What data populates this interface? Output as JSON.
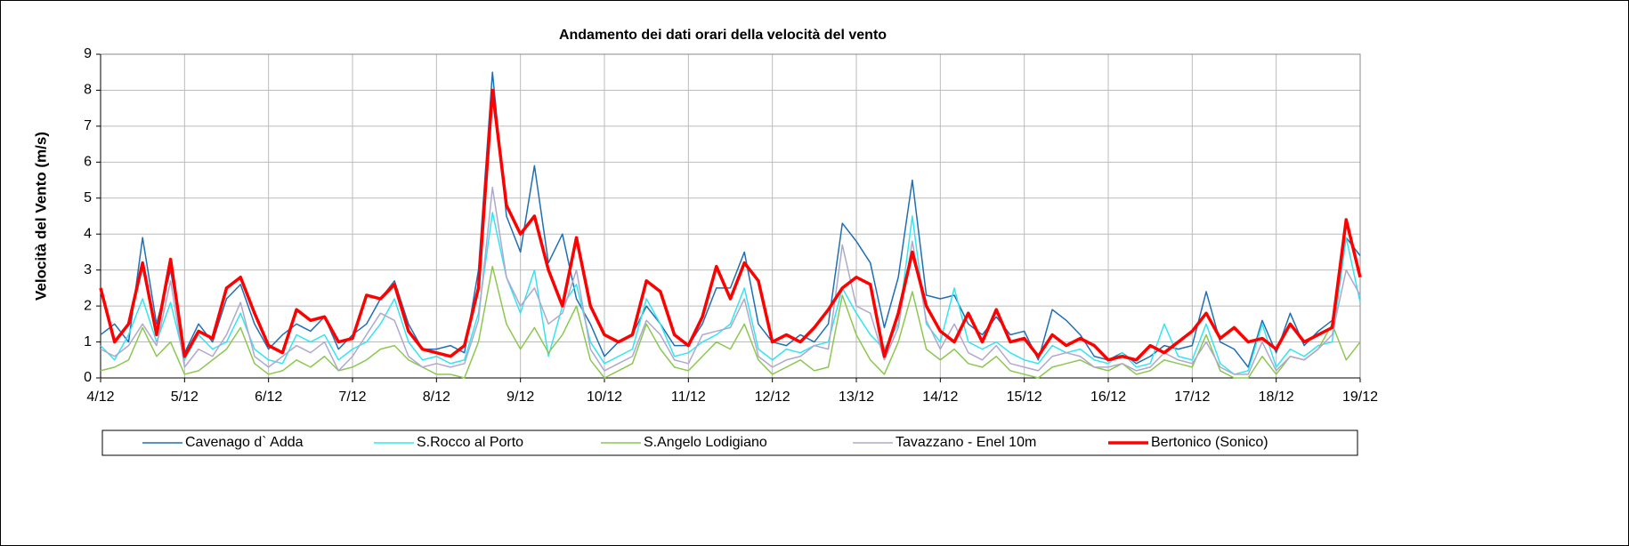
{
  "chart_data": {
    "type": "line",
    "title": "Andamento dei dati orari della velocità del vento",
    "y_label": "Velocità del Vento (m/s)",
    "x": [
      0,
      4,
      8,
      12,
      16,
      20,
      24,
      28,
      32,
      36,
      40,
      44,
      48,
      52,
      56,
      60,
      64,
      68,
      72,
      76,
      80,
      84,
      88,
      92,
      96,
      100,
      104,
      108,
      112,
      116,
      120,
      124,
      128,
      132,
      136,
      140,
      144,
      148,
      152,
      156,
      160,
      164,
      168,
      172,
      176,
      180,
      184,
      188,
      192,
      196,
      200,
      204,
      208,
      212,
      216,
      220,
      224,
      228,
      232,
      236,
      240,
      244,
      248,
      252,
      256,
      260,
      264,
      268,
      272,
      276,
      280,
      284,
      288,
      292,
      296,
      300,
      304,
      308,
      312,
      316,
      320,
      324,
      328,
      332,
      336,
      340,
      344,
      348,
      352,
      356,
      360
    ],
    "xlim": [
      0,
      360
    ],
    "xticks": [
      {
        "value": 0,
        "label": "4/12"
      },
      {
        "value": 24,
        "label": "5/12"
      },
      {
        "value": 48,
        "label": "6/12"
      },
      {
        "value": 72,
        "label": "7/12"
      },
      {
        "value": 96,
        "label": "8/12"
      },
      {
        "value": 120,
        "label": "9/12"
      },
      {
        "value": 144,
        "label": "10/12"
      },
      {
        "value": 168,
        "label": "11/12"
      },
      {
        "value": 192,
        "label": "12/12"
      },
      {
        "value": 216,
        "label": "13/12"
      },
      {
        "value": 240,
        "label": "14/12"
      },
      {
        "value": 264,
        "label": "15/12"
      },
      {
        "value": 288,
        "label": "16/12"
      },
      {
        "value": 312,
        "label": "17/12"
      },
      {
        "value": 336,
        "label": "18/12"
      },
      {
        "value": 360,
        "label": "19/12"
      }
    ],
    "ylim": [
      0,
      9
    ],
    "yticks": [
      0,
      1,
      2,
      3,
      4,
      5,
      6,
      7,
      8,
      9
    ],
    "grid": true,
    "legend": "bottom",
    "series": [
      {
        "name": "Cavenago d` Adda",
        "color": "#1f6fb5",
        "width": 1.5,
        "values": [
          1.2,
          1.5,
          1.0,
          3.9,
          1.5,
          3.0,
          0.7,
          1.5,
          1.0,
          2.2,
          2.6,
          1.5,
          0.8,
          1.2,
          1.5,
          1.3,
          1.7,
          0.8,
          1.2,
          1.5,
          2.2,
          2.7,
          1.5,
          0.8,
          0.8,
          0.9,
          0.7,
          3.0,
          8.5,
          4.5,
          3.5,
          5.9,
          3.2,
          4.0,
          2.2,
          1.5,
          0.6,
          1.0,
          1.2,
          2.0,
          1.5,
          0.9,
          0.9,
          1.5,
          2.5,
          2.5,
          3.5,
          1.5,
          1.0,
          0.9,
          1.2,
          1.0,
          1.5,
          4.3,
          3.8,
          3.2,
          1.4,
          2.8,
          5.5,
          2.3,
          2.2,
          2.3,
          1.5,
          1.2,
          1.7,
          1.2,
          1.3,
          0.5,
          1.9,
          1.6,
          1.2,
          0.6,
          0.5,
          0.7,
          0.4,
          0.6,
          0.9,
          0.8,
          0.9,
          2.4,
          1.0,
          0.8,
          0.3,
          1.6,
          0.7,
          1.8,
          0.9,
          1.3,
          1.6,
          3.9,
          3.4
        ]
      },
      {
        "name": "S.Rocco al Porto",
        "color": "#33e5f0",
        "width": 1.5,
        "values": [
          0.9,
          0.5,
          1.2,
          2.2,
          1.0,
          2.1,
          0.5,
          1.2,
          0.8,
          1.0,
          1.8,
          0.8,
          0.5,
          0.4,
          1.2,
          1.0,
          1.2,
          0.5,
          0.8,
          1.0,
          1.5,
          2.2,
          1.0,
          0.5,
          0.6,
          0.4,
          0.5,
          1.8,
          4.6,
          2.8,
          1.8,
          3.0,
          0.6,
          2.0,
          2.6,
          1.0,
          0.4,
          0.6,
          0.8,
          2.2,
          1.5,
          0.6,
          0.7,
          1.0,
          1.2,
          1.5,
          2.5,
          0.8,
          0.5,
          0.8,
          0.7,
          0.9,
          1.0,
          2.5,
          1.8,
          1.2,
          0.8,
          1.5,
          4.5,
          1.5,
          1.0,
          2.5,
          1.0,
          0.8,
          1.0,
          0.7,
          0.5,
          0.4,
          0.9,
          0.7,
          0.8,
          0.5,
          0.4,
          0.7,
          0.3,
          0.4,
          1.5,
          0.6,
          0.5,
          1.5,
          0.4,
          0.1,
          0.2,
          1.5,
          0.3,
          0.8,
          0.6,
          0.9,
          1.0,
          3.9,
          2.1
        ]
      },
      {
        "name": "S.Angelo Lodigiano",
        "color": "#8cc850",
        "width": 1.5,
        "values": [
          0.2,
          0.3,
          0.5,
          1.4,
          0.6,
          1.0,
          0.1,
          0.2,
          0.5,
          0.8,
          1.4,
          0.4,
          0.1,
          0.2,
          0.5,
          0.3,
          0.6,
          0.2,
          0.3,
          0.5,
          0.8,
          0.9,
          0.5,
          0.3,
          0.1,
          0.1,
          0.0,
          1.0,
          3.1,
          1.5,
          0.8,
          1.4,
          0.7,
          1.2,
          2.0,
          0.5,
          0.0,
          0.2,
          0.4,
          1.5,
          0.8,
          0.3,
          0.2,
          0.6,
          1.0,
          0.8,
          1.5,
          0.5,
          0.1,
          0.3,
          0.5,
          0.2,
          0.3,
          2.3,
          1.2,
          0.5,
          0.1,
          1.0,
          2.4,
          0.8,
          0.5,
          0.8,
          0.4,
          0.3,
          0.6,
          0.2,
          0.1,
          0.0,
          0.3,
          0.4,
          0.5,
          0.3,
          0.2,
          0.4,
          0.1,
          0.2,
          0.5,
          0.4,
          0.3,
          1.2,
          0.2,
          0.0,
          0.0,
          0.6,
          0.1,
          0.6,
          0.5,
          0.8,
          1.5,
          0.5,
          1.0
        ]
      },
      {
        "name": "Tavazzano - Enel 10m",
        "color": "#b0a8cc",
        "width": 1.5,
        "values": [
          0.8,
          0.6,
          0.9,
          1.5,
          0.9,
          2.7,
          0.3,
          0.8,
          0.6,
          1.2,
          2.1,
          0.6,
          0.3,
          0.6,
          0.9,
          0.7,
          1.0,
          0.2,
          0.6,
          1.2,
          1.8,
          1.6,
          0.6,
          0.3,
          0.4,
          0.3,
          0.4,
          1.6,
          5.3,
          2.8,
          2.0,
          2.5,
          1.5,
          1.8,
          3.0,
          0.8,
          0.2,
          0.4,
          0.6,
          1.6,
          1.2,
          0.5,
          0.4,
          1.2,
          1.3,
          1.4,
          2.2,
          0.6,
          0.3,
          0.5,
          0.6,
          0.9,
          0.8,
          3.7,
          2.0,
          1.8,
          0.5,
          1.4,
          3.8,
          1.6,
          0.8,
          1.5,
          0.7,
          0.5,
          0.9,
          0.4,
          0.3,
          0.2,
          0.6,
          0.7,
          0.6,
          0.3,
          0.3,
          0.4,
          0.2,
          0.3,
          0.7,
          0.5,
          0.4,
          1.0,
          0.3,
          0.1,
          0.1,
          1.0,
          0.2,
          0.6,
          0.5,
          0.8,
          1.2,
          3.0,
          2.3
        ]
      },
      {
        "name": "Bertonico (Sonico)",
        "color": "#ff0000",
        "width": 3.5,
        "values": [
          2.5,
          1.0,
          1.5,
          3.2,
          1.2,
          3.3,
          0.6,
          1.3,
          1.1,
          2.5,
          2.8,
          1.8,
          0.9,
          0.7,
          1.9,
          1.6,
          1.7,
          1.0,
          1.1,
          2.3,
          2.2,
          2.6,
          1.3,
          0.8,
          0.7,
          0.6,
          0.9,
          2.5,
          8.0,
          4.8,
          4.0,
          4.5,
          3.0,
          2.0,
          3.9,
          2.0,
          1.2,
          1.0,
          1.2,
          2.7,
          2.4,
          1.2,
          0.9,
          1.7,
          3.1,
          2.2,
          3.2,
          2.7,
          1.0,
          1.2,
          1.0,
          1.4,
          1.9,
          2.5,
          2.8,
          2.6,
          0.6,
          1.8,
          3.5,
          2.0,
          1.3,
          1.0,
          1.8,
          1.0,
          1.9,
          1.0,
          1.1,
          0.6,
          1.2,
          0.9,
          1.1,
          0.9,
          0.5,
          0.6,
          0.5,
          0.9,
          0.7,
          1.0,
          1.3,
          1.8,
          1.1,
          1.4,
          1.0,
          1.1,
          0.8,
          1.5,
          1.0,
          1.2,
          1.4,
          4.4,
          2.8
        ]
      }
    ]
  }
}
